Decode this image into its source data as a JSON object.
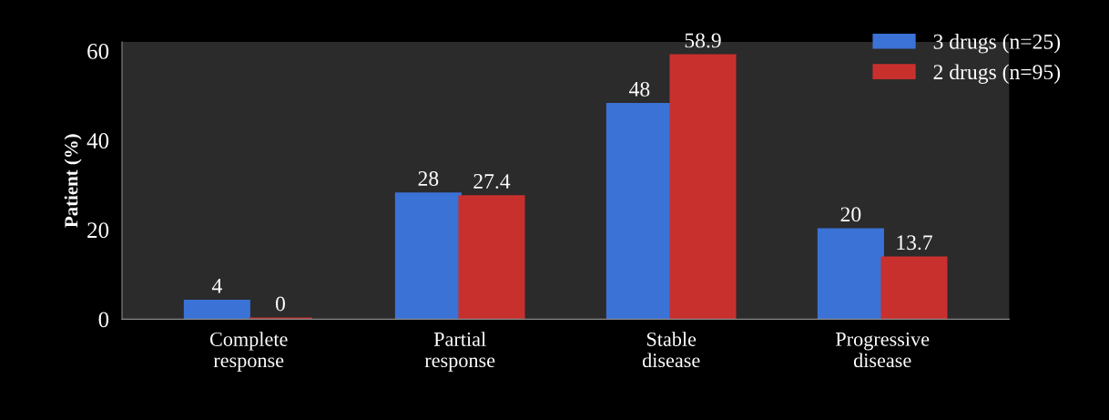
{
  "chart_data": {
    "type": "bar",
    "ylabel": "Patient (%)",
    "categories": [
      "Complete\nresponse",
      "Partial\nresponse",
      "Stable\ndisease",
      "Progressive\ndisease"
    ],
    "series": [
      {
        "name": "3 drugs (n=25)",
        "color": "#3b72d6",
        "values": [
          4,
          28,
          48,
          20
        ]
      },
      {
        "name": "2 drugs (n=95)",
        "color": "#c8302e",
        "values": [
          0,
          27.4,
          58.9,
          13.7
        ]
      }
    ],
    "ylim": [
      0,
      62
    ],
    "yticks": [
      0,
      20,
      40,
      60
    ],
    "grid": false,
    "legend": "top right",
    "data_labels": true
  }
}
